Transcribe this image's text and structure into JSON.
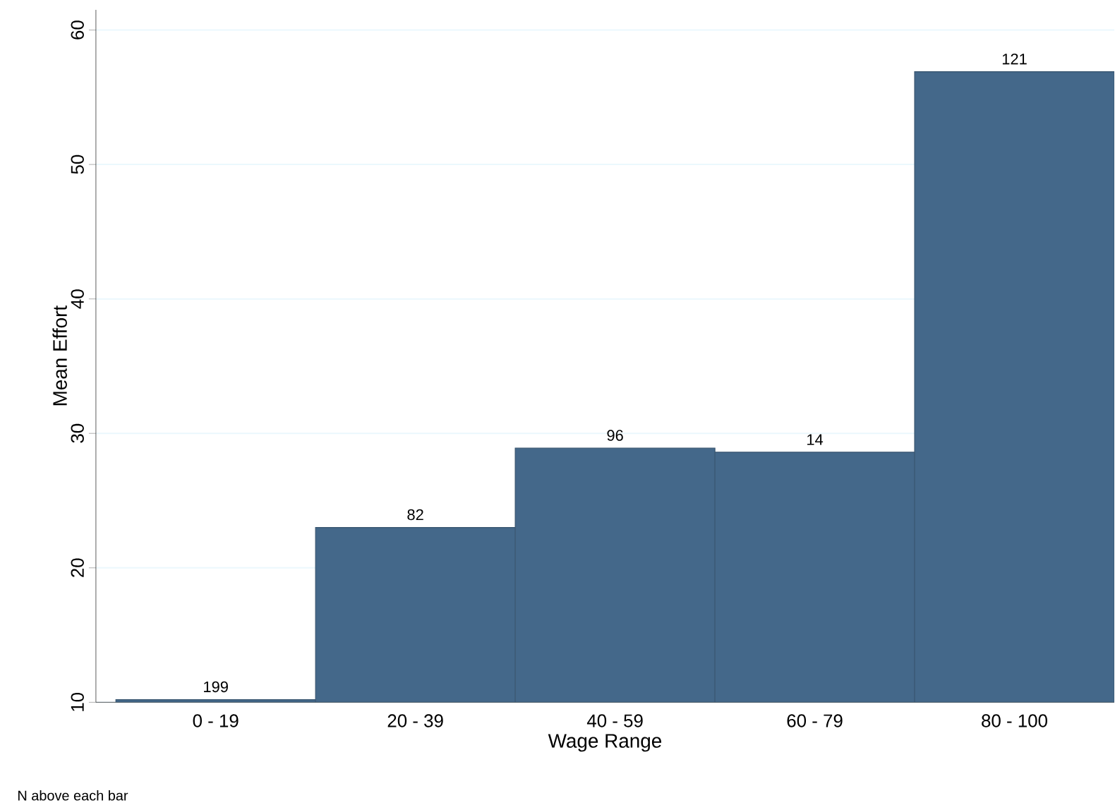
{
  "chart_data": {
    "type": "bar",
    "xlabel": "Wage Range",
    "ylabel": "Mean Effort",
    "categories": [
      "0 - 19",
      "20 - 39",
      "40 - 59",
      "60 - 79",
      "80 - 100"
    ],
    "values": [
      10.2,
      23.0,
      28.9,
      28.6,
      56.9
    ],
    "color": "#44688a",
    "ylim": [
      10,
      61.5
    ],
    "yticks": [
      10,
      20,
      30,
      40,
      50,
      60
    ],
    "grid": "y",
    "annotations": [
      {
        "text": "199",
        "x": "0 - 19",
        "y": 10.2
      },
      {
        "text": "82",
        "x": "20 - 39",
        "y": 23.0
      },
      {
        "text": "96",
        "x": "40 - 59",
        "y": 28.9
      },
      {
        "text": "14",
        "x": "60 - 79",
        "y": 28.6
      },
      {
        "text": "121",
        "x": "80 - 100",
        "y": 56.9
      },
      "N above each bar"
    ]
  }
}
